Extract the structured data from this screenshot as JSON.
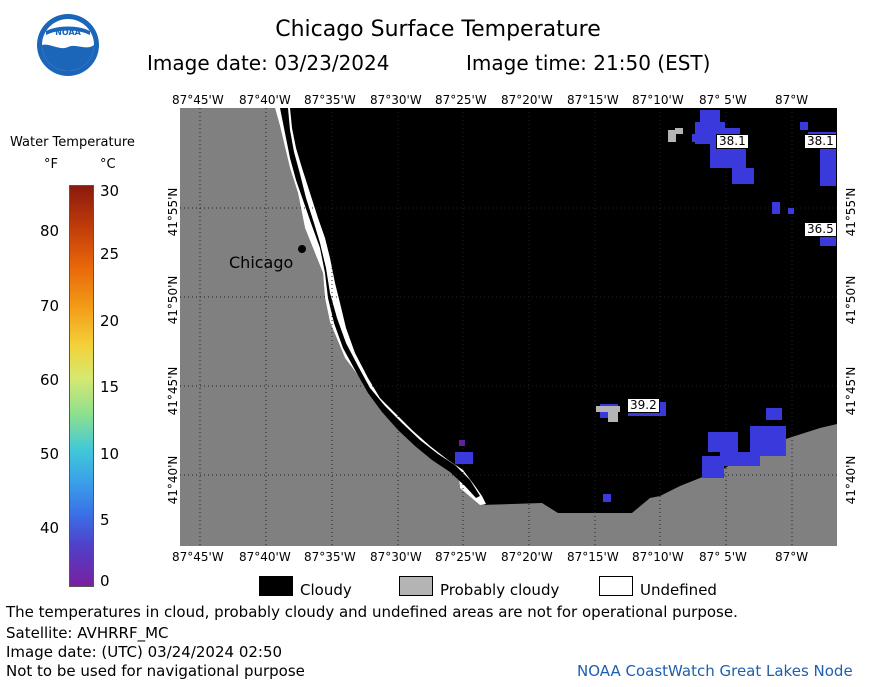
{
  "header": {
    "title": "Chicago Surface Temperature",
    "image_date": "Image date: 03/23/2024",
    "image_time": "Image time: 21:50 (EST)"
  },
  "map": {
    "lon_labels_top": [
      "87°45'W",
      "87°40'W",
      "87°35'W",
      "87°30'W",
      "87°25'W",
      "87°20'W",
      "87°15'W",
      "87°10'W",
      "87° 5'W",
      "87°W"
    ],
    "lon_labels_bottom": [
      "87°45'W",
      "87°40'W",
      "87°35'W",
      "87°30'W",
      "87°25'W",
      "87°20'W",
      "87°15'W",
      "87°10'W",
      "87° 5'W",
      "87°W"
    ],
    "lat_labels": [
      "41°55'N",
      "41°50'N",
      "41°45'N",
      "41°40'N"
    ],
    "city_label": "Chicago",
    "temp_labels": [
      "38.1",
      "38.1",
      "36.5",
      "39.2"
    ],
    "colors": {
      "land": "#808080",
      "cloudy": "#000000",
      "undefined": "#ffffff",
      "probably_cloudy": "#b4b4b4",
      "water_warm": "#3a3adc"
    }
  },
  "legend": {
    "title": "Water Temperature",
    "unit_f": "°F",
    "unit_c": "°C",
    "f_ticks": [
      "80",
      "70",
      "60",
      "50",
      "40"
    ],
    "c_ticks": [
      "30",
      "25",
      "20",
      "15",
      "10",
      "5",
      "0"
    ]
  },
  "cloud_legend": {
    "cloudy": "Cloudy",
    "probably_cloudy": "Probably cloudy",
    "undefined": "Undefined"
  },
  "footer": {
    "note": "The temperatures in cloud, probably cloudy and undefined areas are not for operational purpose.",
    "satellite": "Satellite: AVHRRF_MC",
    "utc_date": "Image date: (UTC) 03/24/2024  02:50",
    "nav_note": "Not to be used for navigational purpose",
    "credit": "NOAA CoastWatch Great Lakes Node"
  }
}
